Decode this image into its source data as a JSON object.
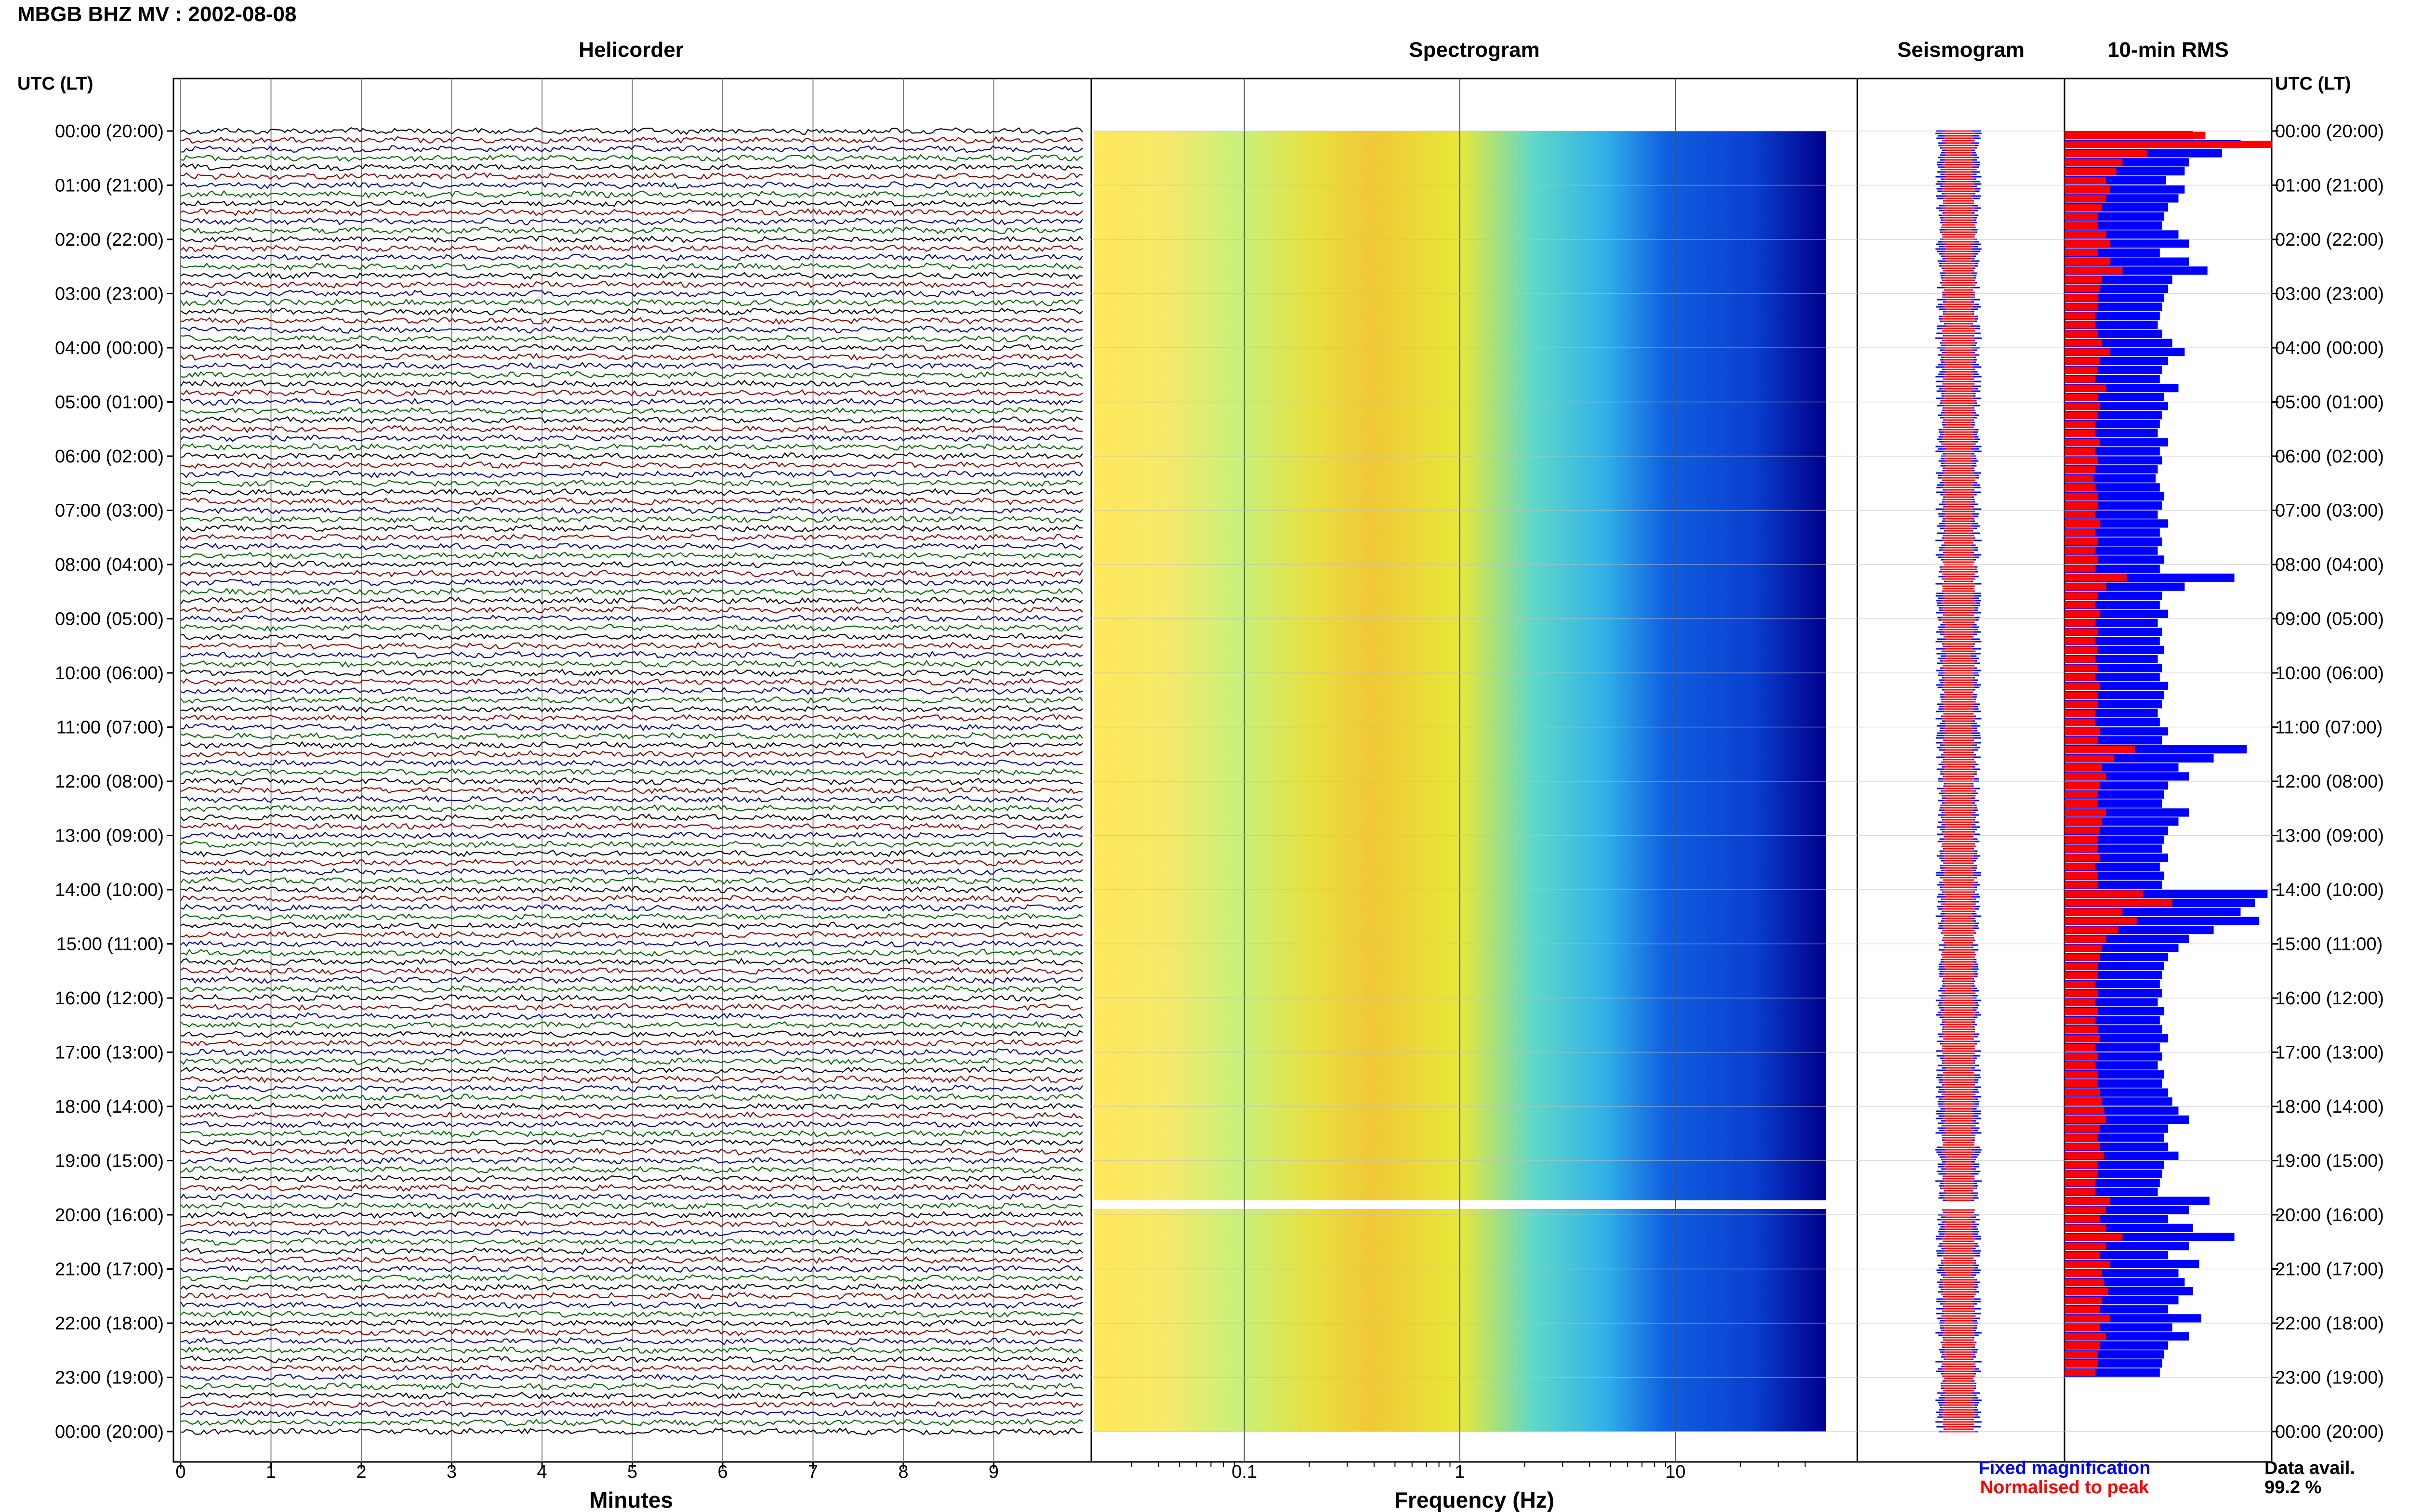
{
  "header": {
    "title": "MBGB BHZ MV : 2002-08-08"
  },
  "panels": {
    "helicorder": "Helicorder",
    "spectrogram": "Spectrogram",
    "seismogram": "Seismogram",
    "rms": "10-min RMS"
  },
  "axis": {
    "left_header": "UTC (LT)",
    "right_header": "UTC (LT)"
  },
  "legend": {
    "fixed": "Fixed magnification",
    "normalised": "Normalised to peak",
    "fixed_color": "#0000ff",
    "normalised_color": "#ff0000"
  },
  "data_avail": {
    "label": "Data avail.",
    "value": "99.2 %"
  },
  "colors": {
    "trace_black": "#000000",
    "trace_red": "#8b0000",
    "trace_blue": "#00008b",
    "trace_green": "#006400",
    "rms_blue": "#0000ff",
    "rms_red": "#ff0000"
  },
  "chart_data": [
    {
      "type": "line",
      "panel": "helicorder",
      "xlabel": "Minutes",
      "x_ticks": [
        "0",
        "1",
        "2",
        "3",
        "4",
        "5",
        "6",
        "7",
        "8",
        "9"
      ],
      "xlim": [
        0,
        10
      ],
      "time_labels": [
        "00:00 (20:00)",
        "01:00 (21:00)",
        "02:00 (22:00)",
        "03:00 (23:00)",
        "04:00 (00:00)",
        "05:00 (01:00)",
        "06:00 (02:00)",
        "07:00 (03:00)",
        "08:00 (04:00)",
        "09:00 (05:00)",
        "10:00 (06:00)",
        "11:00 (07:00)",
        "12:00 (08:00)",
        "13:00 (09:00)",
        "14:00 (10:00)",
        "15:00 (11:00)",
        "16:00 (12:00)",
        "17:00 (13:00)",
        "18:00 (14:00)",
        "19:00 (15:00)",
        "20:00 (16:00)",
        "21:00 (17:00)",
        "22:00 (18:00)",
        "23:00 (19:00)",
        "00:00 (20:00)"
      ],
      "trace_colors": [
        "black",
        "red",
        "blue",
        "green"
      ],
      "traces_per_hour": 6
    },
    {
      "type": "heatmap",
      "panel": "spectrogram",
      "xlabel": "Frequency (Hz)",
      "x_scale": "log",
      "x_ticks": [
        "0.1",
        "1",
        "10"
      ],
      "xlim": [
        0.02,
        50
      ],
      "colormap": "jet"
    },
    {
      "type": "line",
      "panel": "seismogram",
      "series": [
        {
          "name": "Fixed magnification"
        },
        {
          "name": "Normalised to peak"
        }
      ]
    },
    {
      "type": "bar",
      "panel": "10-min RMS",
      "interval_minutes": 10,
      "series": [
        {
          "name": "Fixed magnification",
          "values": [
            0.62,
            0.85,
            0.76,
            0.6,
            0.58,
            0.49,
            0.58,
            0.55,
            0.5,
            0.48,
            0.47,
            0.55,
            0.6,
            0.46,
            0.6,
            0.69,
            0.52,
            0.5,
            0.48,
            0.47,
            0.46,
            0.45,
            0.47,
            0.52,
            0.58,
            0.5,
            0.47,
            0.46,
            0.55,
            0.48,
            0.5,
            0.47,
            0.46,
            0.45,
            0.5,
            0.46,
            0.47,
            0.45,
            0.44,
            0.46,
            0.48,
            0.47,
            0.45,
            0.5,
            0.46,
            0.47,
            0.45,
            0.48,
            0.46,
            0.82,
            0.58,
            0.47,
            0.46,
            0.5,
            0.45,
            0.47,
            0.46,
            0.48,
            0.45,
            0.47,
            0.46,
            0.5,
            0.48,
            0.47,
            0.45,
            0.46,
            0.5,
            0.47,
            0.88,
            0.72,
            0.55,
            0.6,
            0.5,
            0.48,
            0.47,
            0.6,
            0.55,
            0.5,
            0.48,
            0.47,
            0.5,
            0.46,
            0.48,
            0.47,
            0.98,
            0.92,
            0.85,
            0.94,
            0.72,
            0.6,
            0.55,
            0.5,
            0.48,
            0.47,
            0.46,
            0.47,
            0.45,
            0.48,
            0.46,
            0.47,
            0.5,
            0.46,
            0.47,
            0.45,
            0.48,
            0.47,
            0.5,
            0.52,
            0.55,
            0.6,
            0.5,
            0.48,
            0.5,
            0.55,
            0.48,
            0.47,
            0.46,
            0.45,
            0.7,
            0.6,
            0.5,
            0.62,
            0.82,
            0.6,
            0.5,
            0.65,
            0.55,
            0.58,
            0.62,
            0.55,
            0.5,
            0.66,
            0.52,
            0.6,
            0.5,
            0.48,
            0.47,
            0.46
          ]
        },
        {
          "name": "Normalised to peak",
          "values": [
            0.68,
            1.0,
            0.4,
            0.28,
            0.25,
            0.2,
            0.22,
            0.2,
            0.18,
            0.16,
            0.16,
            0.2,
            0.22,
            0.16,
            0.22,
            0.28,
            0.18,
            0.17,
            0.16,
            0.16,
            0.15,
            0.15,
            0.16,
            0.18,
            0.22,
            0.17,
            0.16,
            0.15,
            0.2,
            0.16,
            0.17,
            0.16,
            0.15,
            0.15,
            0.17,
            0.15,
            0.16,
            0.15,
            0.14,
            0.15,
            0.16,
            0.16,
            0.15,
            0.17,
            0.15,
            0.16,
            0.15,
            0.16,
            0.15,
            0.3,
            0.2,
            0.16,
            0.15,
            0.17,
            0.15,
            0.16,
            0.15,
            0.16,
            0.15,
            0.16,
            0.15,
            0.17,
            0.16,
            0.16,
            0.15,
            0.15,
            0.17,
            0.16,
            0.34,
            0.24,
            0.18,
            0.2,
            0.17,
            0.16,
            0.16,
            0.2,
            0.18,
            0.17,
            0.16,
            0.16,
            0.17,
            0.15,
            0.16,
            0.16,
            0.38,
            0.52,
            0.28,
            0.35,
            0.26,
            0.2,
            0.18,
            0.17,
            0.16,
            0.16,
            0.15,
            0.16,
            0.15,
            0.16,
            0.15,
            0.16,
            0.17,
            0.15,
            0.16,
            0.15,
            0.16,
            0.16,
            0.17,
            0.18,
            0.19,
            0.2,
            0.17,
            0.16,
            0.17,
            0.19,
            0.16,
            0.16,
            0.15,
            0.15,
            0.22,
            0.2,
            0.17,
            0.2,
            0.28,
            0.2,
            0.17,
            0.22,
            0.18,
            0.19,
            0.21,
            0.18,
            0.17,
            0.22,
            0.17,
            0.2,
            0.17,
            0.16,
            0.16,
            0.15
          ]
        }
      ]
    }
  ]
}
